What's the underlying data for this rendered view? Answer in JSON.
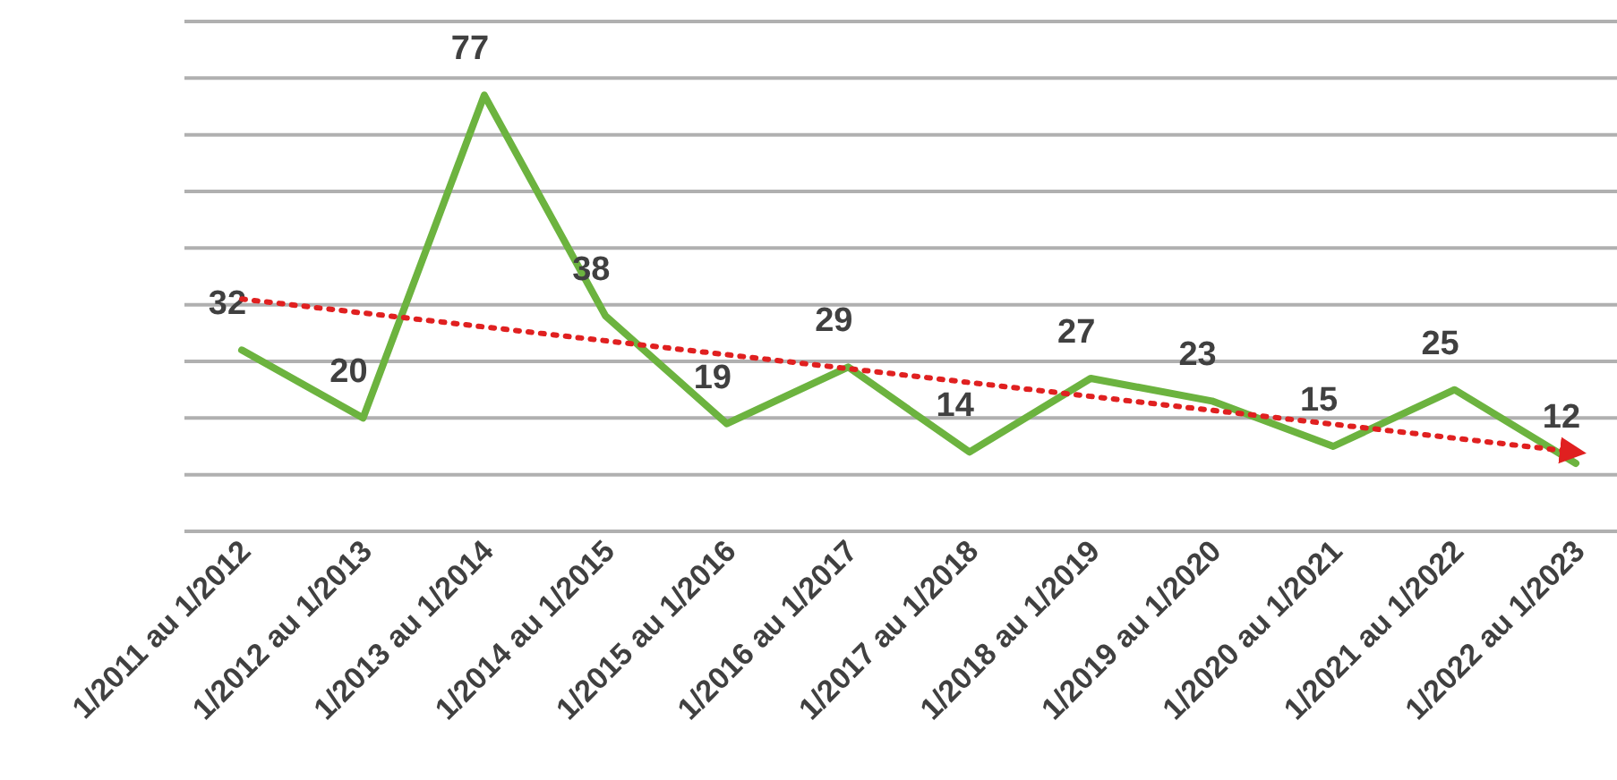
{
  "chart_data": {
    "type": "line",
    "categories": [
      "1/2011 au 1/2012",
      "1/2012 au 1/2013",
      "1/2013 au 1/2014",
      "1/2014 au 1/2015",
      "1/2015 au 1/2016",
      "1/2016 au 1/2017",
      "1/2017 au 1/2018",
      "1/2018 au 1/2019",
      "1/2019 au 1/2020",
      "1/2020 au 1/2021",
      "1/2021 au 1/2022",
      "1/2022 au 1/2023"
    ],
    "ylim": [
      0,
      90
    ],
    "yticks": [
      {
        "value": 0,
        "label": null
      },
      {
        "value": 10,
        "label": null
      },
      {
        "value": 20,
        "label": null
      },
      {
        "value": 30,
        "label": null
      },
      {
        "value": 40,
        "label": null
      },
      {
        "value": 50,
        "label": null
      },
      {
        "value": 60,
        "label": null
      },
      {
        "value": 70,
        "label": null
      },
      {
        "value": 80,
        "label": null
      },
      {
        "value": 90,
        "label": null
      }
    ],
    "grid": "y",
    "tick_labels": "x",
    "series": [
      {
        "color": "#6cb33f",
        "values": [
          32,
          20,
          77,
          38,
          19,
          29,
          14,
          27,
          23,
          15,
          25,
          12
        ],
        "data_labels": true,
        "line_style": "solid",
        "marker": "none"
      },
      {
        "type": "line",
        "color": "#e02020",
        "x": [
          "1/2011 au 1/2012",
          "1/2022 au 1/2023"
        ],
        "values": [
          41,
          14
        ],
        "line_style": "dotted",
        "marker": "none"
      }
    ]
  }
}
